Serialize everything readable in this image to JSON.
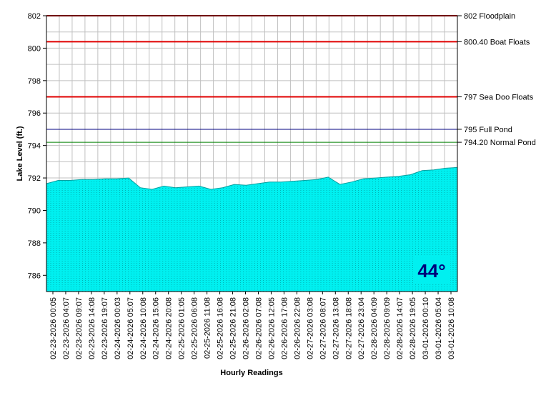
{
  "chart_data": {
    "type": "area",
    "title": "",
    "xlabel": "Hourly Readings",
    "ylabel": "Lake Level (ft.)",
    "ylim": [
      785,
      802
    ],
    "yticks": [
      786,
      788,
      790,
      792,
      794,
      796,
      798,
      800,
      802
    ],
    "grid": true,
    "x_tick_labels": [
      "02-23-2026 00:05",
      "02-23-2026 04:07",
      "02-23-2026 09:07",
      "02-23-2026 14:08",
      "02-23-2026 19:07",
      "02-24-2026 00:03",
      "02-24-2026 05:07",
      "02-24-2026 10:08",
      "02-24-2026 15:06",
      "02-24-2026 20:08",
      "02-25-2026 01:05",
      "02-25-2026 06:08",
      "02-25-2026 11:08",
      "02-25-2026 16:08",
      "02-25-2026 21:08",
      "02-26-2026 02:08",
      "02-26-2026 07:08",
      "02-26-2026 12:05",
      "02-26-2026 17:08",
      "02-26-2026 22:08",
      "02-27-2026 03:08",
      "02-27-2026 08:07",
      "02-27-2026 13:08",
      "02-27-2026 18:08",
      "02-27-2026 23:04",
      "02-28-2026 04:09",
      "02-28-2026 09:09",
      "02-28-2026 14:07",
      "02-28-2026 19:05",
      "03-01-2026 00:10",
      "03-01-2026 05:04",
      "03-01-2026 10:08"
    ],
    "series": [
      {
        "name": "",
        "color": "#00f0f0",
        "values": [
          791.65,
          791.85,
          791.85,
          791.9,
          791.9,
          791.95,
          791.95,
          792.0,
          791.4,
          791.3,
          791.5,
          791.4,
          791.45,
          791.5,
          791.3,
          791.4,
          791.6,
          791.55,
          791.65,
          791.75,
          791.75,
          791.8,
          791.85,
          791.9,
          792.05,
          791.6,
          791.75,
          791.95,
          792.0,
          792.05,
          792.1,
          792.2,
          792.45,
          792.5,
          792.6,
          792.65
        ]
      }
    ],
    "reference_lines": [
      {
        "value": 802,
        "label": "802 Floodplain",
        "color": "#e00000"
      },
      {
        "value": 800.4,
        "label": "800.40 Boat Floats",
        "color": "#e00000"
      },
      {
        "value": 797,
        "label": "797 Sea Doo Floats",
        "color": "#e00000"
      },
      {
        "value": 795,
        "label": "795 Full Pond",
        "color": "#000080"
      },
      {
        "value": 794.2,
        "label": "794.20 Normal Pond",
        "color": "#008000"
      }
    ],
    "annotation": {
      "text": "44°",
      "color": "#00007a",
      "background": "#00f0f0"
    }
  }
}
